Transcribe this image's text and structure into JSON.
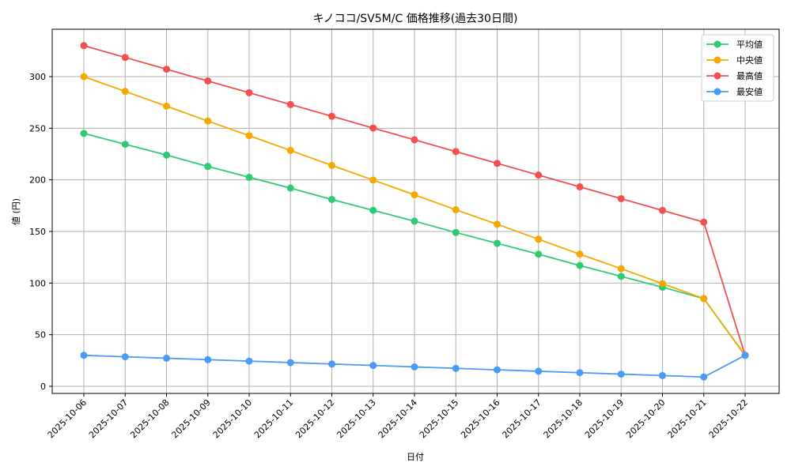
{
  "chart_data": {
    "type": "line",
    "title": "キノココ/SV5M/C 価格推移(過去30日間)",
    "xlabel": "日付",
    "ylabel": "値 (円)",
    "ylim": [
      -7,
      343
    ],
    "yticks": [
      0,
      50,
      100,
      150,
      200,
      250,
      300
    ],
    "grid": true,
    "legend_position": "upper right",
    "categories": [
      "2025-10-06",
      "2025-10-07",
      "2025-10-08",
      "2025-10-09",
      "2025-10-10",
      "2025-10-11",
      "2025-10-12",
      "2025-10-13",
      "2025-10-14",
      "2025-10-15",
      "2025-10-16",
      "2025-10-17",
      "2025-10-18",
      "2025-10-19",
      "2025-10-20",
      "2025-10-21",
      "2025-10-22"
    ],
    "series": [
      {
        "name": "平均値",
        "color": "#2ecc71",
        "values": [
          245,
          234.5,
          224,
          213,
          202.5,
          192,
          181,
          170.5,
          160,
          149,
          138.5,
          128,
          117,
          106.5,
          96,
          85,
          30
        ]
      },
      {
        "name": "中央値",
        "color": "#f5a800",
        "values": [
          300,
          285.7,
          271.4,
          257,
          242.8,
          228.5,
          214,
          199.8,
          185.5,
          171,
          157,
          142.5,
          128,
          114,
          99.5,
          85,
          30
        ]
      },
      {
        "name": "最高値",
        "color": "#f24f4f",
        "values": [
          330,
          318.6,
          307.2,
          295.8,
          284.4,
          273,
          261.6,
          250.2,
          238.8,
          227.4,
          216,
          204.6,
          193.2,
          181.8,
          170.4,
          159,
          30
        ]
      },
      {
        "name": "最安値",
        "color": "#4a9bf7",
        "values": [
          30,
          28.6,
          27.2,
          25.8,
          24.4,
          23,
          21.6,
          20.2,
          18.8,
          17.4,
          16,
          14.6,
          13.2,
          11.8,
          10.4,
          9,
          30
        ]
      }
    ]
  }
}
